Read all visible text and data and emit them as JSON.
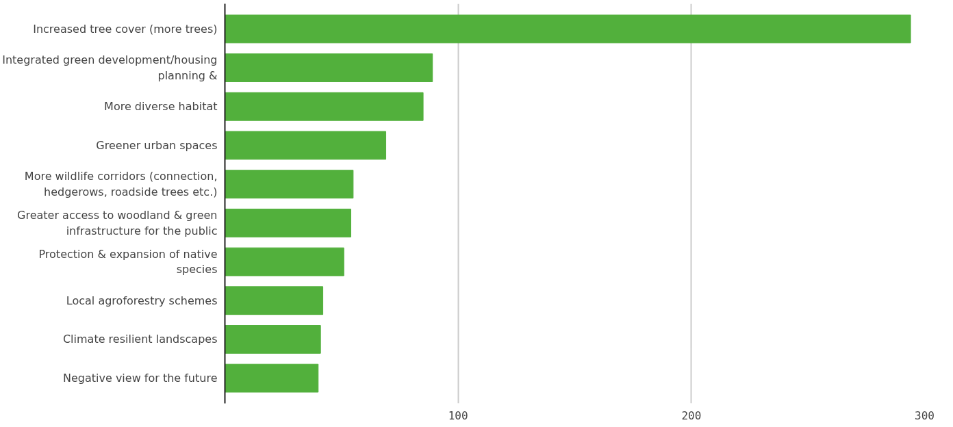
{
  "chart_data": {
    "type": "bar",
    "orientation": "horizontal",
    "categories": [
      "Increased tree cover (more trees)",
      "Integrated green development/housing planning &",
      "More diverse habitat",
      "Greener urban spaces",
      "More wildlife corridors (connection, hedgerows, roadside trees etc.)",
      "Greater access to woodland & green infrastructure for the public",
      "Protection & expansion of native species",
      "Local agroforestry schemes",
      "Climate resilient landscapes",
      "Negative view for the future"
    ],
    "values": [
      294,
      89,
      85,
      69,
      55,
      54,
      51,
      42,
      41,
      40
    ],
    "color": "#52b03c",
    "xlim": [
      0,
      300
    ],
    "xticks": [
      100,
      200,
      300
    ],
    "grid": "x"
  }
}
